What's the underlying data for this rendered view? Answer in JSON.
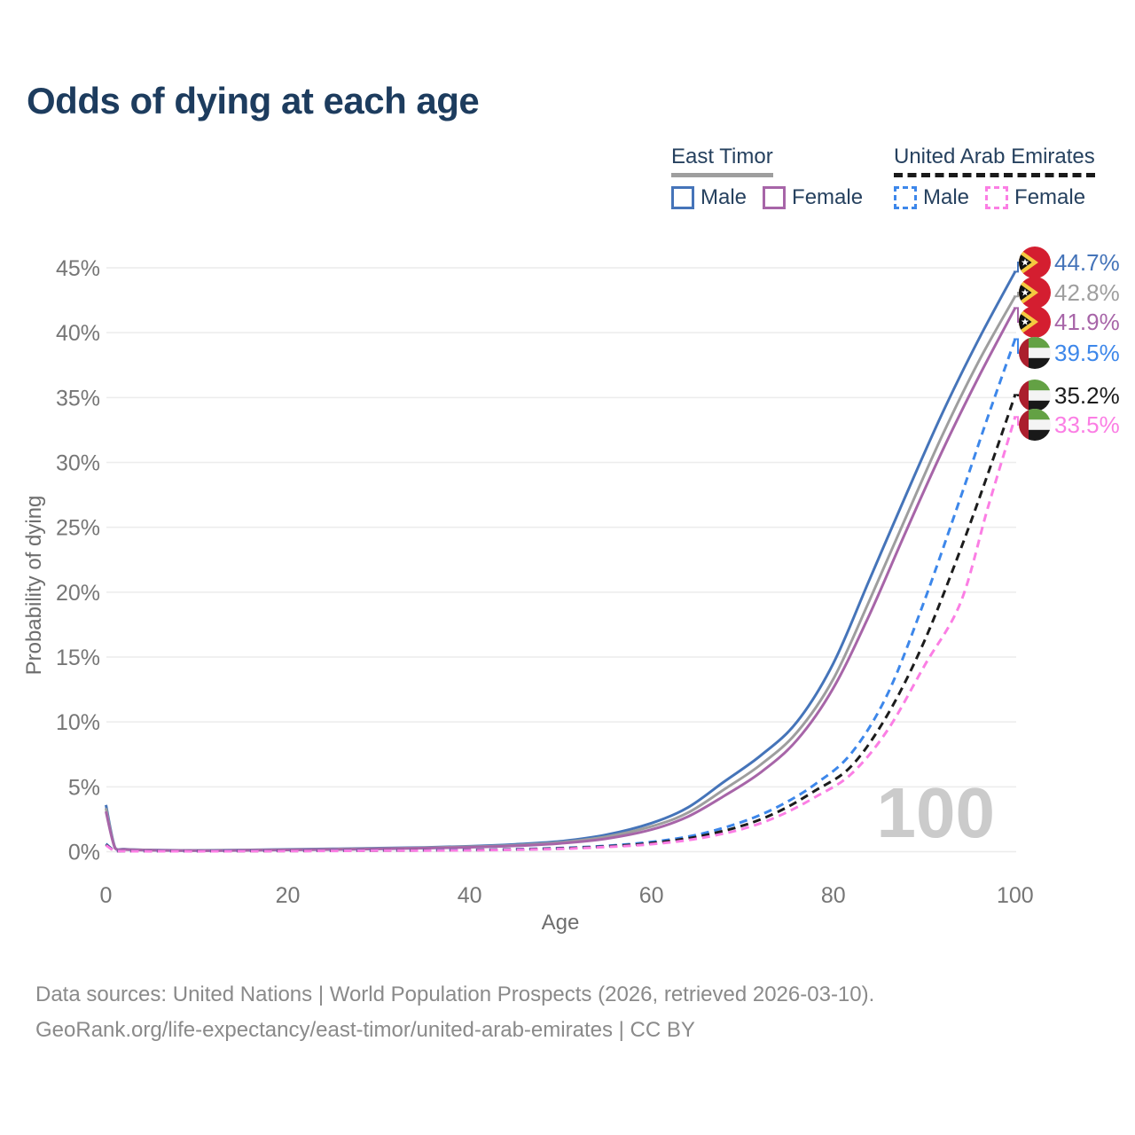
{
  "title": "Odds of dying at each age",
  "legend": {
    "groups": [
      {
        "label": "East Timor",
        "line_style": "solid",
        "underline_color": "#9e9e9e",
        "items": [
          {
            "label": "Male",
            "color": "#4574b9"
          },
          {
            "label": "Female",
            "color": "#a765a8"
          }
        ]
      },
      {
        "label": "United Arab Emirates",
        "line_style": "dashed",
        "underline_color": "#1a1a1a",
        "items": [
          {
            "label": "Male",
            "color": "#3d87ea"
          },
          {
            "label": "Female",
            "color": "#fb7ee4"
          }
        ]
      }
    ]
  },
  "axes": {
    "x": {
      "label": "Age",
      "ticks": [
        "0",
        "20",
        "40",
        "60",
        "80",
        "100"
      ],
      "range": [
        0,
        100
      ]
    },
    "y": {
      "label": "Probability of dying",
      "ticks": [
        "0%",
        "5%",
        "10%",
        "15%",
        "20%",
        "25%",
        "30%",
        "35%",
        "40%",
        "45%"
      ],
      "range": [
        0,
        45
      ]
    }
  },
  "watermark": "100",
  "end_labels": [
    {
      "value": "44.7%",
      "flag": "east-timor",
      "color": "#4574b9"
    },
    {
      "value": "42.8%",
      "flag": "east-timor",
      "color": "#9e9e9e"
    },
    {
      "value": "41.9%",
      "flag": "east-timor",
      "color": "#a765a8"
    },
    {
      "value": "39.5%",
      "flag": "uae",
      "color": "#3d87ea"
    },
    {
      "value": "35.2%",
      "flag": "uae",
      "color": "#1c1c1c"
    },
    {
      "value": "33.5%",
      "flag": "uae",
      "color": "#fb7ee4"
    }
  ],
  "footer": {
    "line1": "Data sources: United Nations | World Population Prospects (2026, retrieved 2026-03-10).",
    "line2": "GeoRank.org/life-expectancy/east-timor/united-arab-emirates | CC BY"
  },
  "colors": {
    "grid": "#ececec",
    "tick_text": "#767676",
    "axis_title": "#6e6e6e",
    "title_text": "#1d3c5e",
    "watermark": "#cbcbcb"
  },
  "chart_data": {
    "type": "line",
    "title": "Odds of dying at each age",
    "xlabel": "Age",
    "ylabel": "Probability of dying",
    "unit": "%",
    "xlim": [
      0,
      100
    ],
    "ylim": [
      0,
      45
    ],
    "grid": "horizontal",
    "series": [
      {
        "id": "east-timor-male",
        "name": "East Timor — Male",
        "color": "#4574b9",
        "dash": "solid",
        "end_value": 44.7,
        "points": [
          [
            0,
            3.6
          ],
          [
            1,
            0.3
          ],
          [
            2,
            0.2
          ],
          [
            5,
            0.13
          ],
          [
            10,
            0.1
          ],
          [
            15,
            0.13
          ],
          [
            20,
            0.18
          ],
          [
            25,
            0.22
          ],
          [
            30,
            0.27
          ],
          [
            35,
            0.33
          ],
          [
            40,
            0.42
          ],
          [
            45,
            0.57
          ],
          [
            50,
            0.8
          ],
          [
            55,
            1.3
          ],
          [
            60,
            2.2
          ],
          [
            64,
            3.4
          ],
          [
            68,
            5.4
          ],
          [
            72,
            7.4
          ],
          [
            76,
            10.0
          ],
          [
            80,
            14.5
          ],
          [
            84,
            21.0
          ],
          [
            88,
            27.5
          ],
          [
            92,
            33.8
          ],
          [
            96,
            39.5
          ],
          [
            100,
            44.7
          ]
        ]
      },
      {
        "id": "east-timor-both",
        "name": "East Timor — Both sexes",
        "color": "#9e9e9e",
        "dash": "solid",
        "end_value": 42.8,
        "points": [
          [
            0,
            3.35
          ],
          [
            1,
            0.28
          ],
          [
            2,
            0.18
          ],
          [
            5,
            0.12
          ],
          [
            10,
            0.09
          ],
          [
            15,
            0.12
          ],
          [
            20,
            0.16
          ],
          [
            25,
            0.2
          ],
          [
            30,
            0.24
          ],
          [
            35,
            0.3
          ],
          [
            40,
            0.38
          ],
          [
            45,
            0.5
          ],
          [
            50,
            0.72
          ],
          [
            55,
            1.15
          ],
          [
            60,
            1.95
          ],
          [
            64,
            3.0
          ],
          [
            68,
            4.8
          ],
          [
            72,
            6.7
          ],
          [
            76,
            9.2
          ],
          [
            80,
            13.3
          ],
          [
            84,
            19.4
          ],
          [
            88,
            25.8
          ],
          [
            92,
            32.1
          ],
          [
            96,
            37.8
          ],
          [
            100,
            42.8
          ]
        ]
      },
      {
        "id": "east-timor-female",
        "name": "East Timor — Female",
        "color": "#a765a8",
        "dash": "solid",
        "end_value": 41.9,
        "points": [
          [
            0,
            3.1
          ],
          [
            1,
            0.26
          ],
          [
            2,
            0.17
          ],
          [
            5,
            0.11
          ],
          [
            10,
            0.08
          ],
          [
            15,
            0.1
          ],
          [
            20,
            0.14
          ],
          [
            25,
            0.17
          ],
          [
            30,
            0.21
          ],
          [
            35,
            0.27
          ],
          [
            40,
            0.34
          ],
          [
            45,
            0.45
          ],
          [
            50,
            0.64
          ],
          [
            55,
            1.0
          ],
          [
            60,
            1.7
          ],
          [
            64,
            2.7
          ],
          [
            68,
            4.3
          ],
          [
            72,
            6.1
          ],
          [
            76,
            8.6
          ],
          [
            80,
            12.6
          ],
          [
            84,
            18.3
          ],
          [
            88,
            24.7
          ],
          [
            92,
            30.9
          ],
          [
            96,
            36.6
          ],
          [
            100,
            41.9
          ]
        ]
      },
      {
        "id": "uae-male",
        "name": "United Arab Emirates — Male",
        "color": "#3d87ea",
        "dash": "dashed",
        "end_value": 39.5,
        "points": [
          [
            0,
            0.6
          ],
          [
            1,
            0.06
          ],
          [
            2,
            0.05
          ],
          [
            5,
            0.04
          ],
          [
            10,
            0.04
          ],
          [
            15,
            0.06
          ],
          [
            20,
            0.07
          ],
          [
            25,
            0.08
          ],
          [
            30,
            0.1
          ],
          [
            35,
            0.11
          ],
          [
            40,
            0.14
          ],
          [
            45,
            0.19
          ],
          [
            50,
            0.28
          ],
          [
            55,
            0.45
          ],
          [
            60,
            0.75
          ],
          [
            65,
            1.3
          ],
          [
            70,
            2.3
          ],
          [
            74,
            3.5
          ],
          [
            78,
            5.2
          ],
          [
            82,
            7.6
          ],
          [
            86,
            12.2
          ],
          [
            90,
            19.3
          ],
          [
            94,
            27.3
          ],
          [
            97,
            33.5
          ],
          [
            100,
            39.5
          ]
        ]
      },
      {
        "id": "uae-both",
        "name": "United Arab Emirates — Both sexes",
        "color": "#1c1c1c",
        "dash": "dashed",
        "end_value": 35.2,
        "points": [
          [
            0,
            0.55
          ],
          [
            1,
            0.05
          ],
          [
            2,
            0.05
          ],
          [
            5,
            0.04
          ],
          [
            10,
            0.04
          ],
          [
            15,
            0.05
          ],
          [
            20,
            0.06
          ],
          [
            25,
            0.07
          ],
          [
            30,
            0.09
          ],
          [
            35,
            0.1
          ],
          [
            40,
            0.12
          ],
          [
            45,
            0.17
          ],
          [
            50,
            0.25
          ],
          [
            55,
            0.4
          ],
          [
            60,
            0.66
          ],
          [
            65,
            1.15
          ],
          [
            70,
            2.0
          ],
          [
            74,
            3.1
          ],
          [
            78,
            4.7
          ],
          [
            82,
            6.6
          ],
          [
            86,
            10.6
          ],
          [
            90,
            16.2
          ],
          [
            94,
            23.3
          ],
          [
            97,
            29.1
          ],
          [
            100,
            35.2
          ]
        ]
      },
      {
        "id": "uae-female",
        "name": "United Arab Emirates — Female",
        "color": "#fb7ee4",
        "dash": "dashed",
        "end_value": 33.5,
        "points": [
          [
            0,
            0.5
          ],
          [
            1,
            0.05
          ],
          [
            2,
            0.04
          ],
          [
            5,
            0.03
          ],
          [
            10,
            0.03
          ],
          [
            15,
            0.04
          ],
          [
            20,
            0.05
          ],
          [
            25,
            0.06
          ],
          [
            30,
            0.08
          ],
          [
            35,
            0.09
          ],
          [
            40,
            0.11
          ],
          [
            45,
            0.15
          ],
          [
            50,
            0.22
          ],
          [
            55,
            0.36
          ],
          [
            60,
            0.58
          ],
          [
            65,
            1.0
          ],
          [
            70,
            1.75
          ],
          [
            74,
            2.75
          ],
          [
            78,
            4.2
          ],
          [
            82,
            6.0
          ],
          [
            86,
            9.4
          ],
          [
            90,
            14.3
          ],
          [
            94,
            19.2
          ],
          [
            97,
            26.5
          ],
          [
            100,
            33.5
          ]
        ]
      }
    ]
  }
}
